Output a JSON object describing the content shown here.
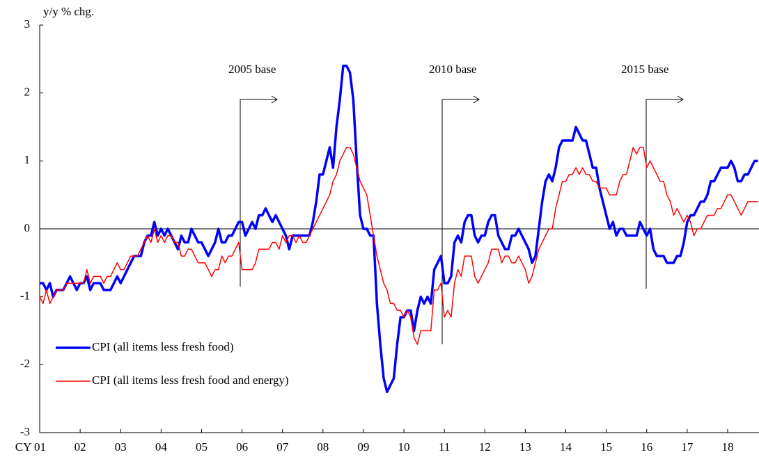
{
  "chart_data": {
    "type": "line",
    "y_label": "y/y % chg.",
    "annotations": [
      "2005 base",
      "2010 base",
      "2015 base"
    ],
    "categories": [
      "CY 01",
      null,
      null,
      null,
      null,
      null,
      null,
      null,
      null,
      null,
      null,
      null,
      "02",
      null,
      null,
      null,
      null,
      null,
      null,
      null,
      null,
      null,
      null,
      null,
      "03",
      null,
      null,
      null,
      null,
      null,
      null,
      null,
      null,
      null,
      null,
      null,
      "04",
      null,
      null,
      null,
      null,
      null,
      null,
      null,
      null,
      null,
      null,
      null,
      "05",
      null,
      null,
      null,
      null,
      null,
      null,
      null,
      null,
      null,
      null,
      null,
      "06",
      null,
      null,
      null,
      null,
      null,
      null,
      null,
      null,
      null,
      null,
      null,
      "07",
      null,
      null,
      null,
      null,
      null,
      null,
      null,
      null,
      null,
      null,
      null,
      "08",
      null,
      null,
      null,
      null,
      null,
      null,
      null,
      null,
      null,
      null,
      null,
      "09",
      null,
      null,
      null,
      null,
      null,
      null,
      null,
      null,
      null,
      null,
      null,
      "10",
      null,
      null,
      null,
      null,
      null,
      null,
      null,
      null,
      null,
      null,
      null,
      "11",
      null,
      null,
      null,
      null,
      null,
      null,
      null,
      null,
      null,
      null,
      null,
      "12",
      null,
      null,
      null,
      null,
      null,
      null,
      null,
      null,
      null,
      null,
      null,
      "13",
      null,
      null,
      null,
      null,
      null,
      null,
      null,
      null,
      null,
      null,
      null,
      "14",
      null,
      null,
      null,
      null,
      null,
      null,
      null,
      null,
      null,
      null,
      null,
      "15",
      null,
      null,
      null,
      null,
      null,
      null,
      null,
      null,
      null,
      null,
      null,
      "16",
      null,
      null,
      null,
      null,
      null,
      null,
      null,
      null,
      null,
      null,
      null,
      "17",
      null,
      null,
      null,
      null,
      null,
      null,
      null,
      null,
      null,
      null,
      null,
      "18",
      null,
      null,
      null,
      null,
      null,
      null,
      null,
      null,
      null
    ],
    "series": [
      {
        "name": "CPI (all items less fresh food)",
        "color": "#0000ff",
        "values": [
          -0.8,
          -0.8,
          -0.9,
          -0.8,
          -1.0,
          -0.9,
          -0.9,
          -0.9,
          -0.8,
          -0.7,
          -0.8,
          -0.9,
          -0.8,
          -0.8,
          -0.7,
          -0.9,
          -0.8,
          -0.8,
          -0.8,
          -0.9,
          -0.9,
          -0.9,
          -0.8,
          -0.7,
          -0.8,
          -0.7,
          -0.6,
          -0.5,
          -0.4,
          -0.4,
          -0.4,
          -0.2,
          -0.1,
          -0.1,
          0.1,
          -0.1,
          0.0,
          -0.1,
          0.0,
          -0.1,
          -0.2,
          -0.3,
          -0.1,
          -0.2,
          -0.2,
          0.0,
          -0.1,
          -0.2,
          -0.2,
          -0.3,
          -0.4,
          -0.3,
          -0.2,
          0.0,
          -0.2,
          -0.2,
          -0.1,
          -0.1,
          0.0,
          0.1,
          0.1,
          -0.1,
          0.0,
          0.1,
          0.0,
          0.2,
          0.2,
          0.3,
          0.2,
          0.1,
          0.2,
          0.1,
          0.0,
          -0.1,
          -0.3,
          -0.1,
          -0.1,
          -0.1,
          -0.1,
          -0.1,
          -0.1,
          0.1,
          0.4,
          0.8,
          0.8,
          1.0,
          1.2,
          0.9,
          1.5,
          1.9,
          2.4,
          2.4,
          2.3,
          1.9,
          1.0,
          0.2,
          0.0,
          0.0,
          -0.1,
          -0.1,
          -1.1,
          -1.7,
          -2.2,
          -2.4,
          -2.3,
          -2.2,
          -1.7,
          -1.3,
          -1.3,
          -1.2,
          -1.2,
          -1.5,
          -1.2,
          -1.0,
          -1.1,
          -1.0,
          -1.1,
          -0.6,
          -0.5,
          -0.4,
          -0.8,
          -0.8,
          -0.7,
          -0.2,
          -0.1,
          -0.2,
          0.1,
          0.2,
          0.2,
          -0.1,
          -0.2,
          -0.1,
          -0.1,
          0.1,
          0.2,
          0.2,
          -0.1,
          -0.2,
          -0.3,
          -0.3,
          -0.1,
          -0.1,
          0.0,
          -0.1,
          -0.2,
          -0.3,
          -0.5,
          -0.4,
          0.0,
          0.4,
          0.7,
          0.8,
          0.7,
          0.9,
          1.2,
          1.3,
          1.3,
          1.3,
          1.3,
          1.5,
          1.4,
          1.3,
          1.3,
          1.1,
          0.9,
          0.9,
          0.6,
          0.4,
          0.2,
          0.0,
          0.1,
          -0.1,
          0.0,
          0.0,
          -0.1,
          -0.1,
          -0.1,
          -0.1,
          0.1,
          0.0,
          -0.1,
          0.0,
          -0.3,
          -0.4,
          -0.4,
          -0.4,
          -0.5,
          -0.5,
          -0.5,
          -0.4,
          -0.4,
          -0.2,
          0.1,
          0.2,
          0.2,
          0.3,
          0.4,
          0.4,
          0.5,
          0.7,
          0.7,
          0.8,
          0.9,
          0.9,
          0.9,
          1.0,
          0.9,
          0.7,
          0.7,
          0.8,
          0.8,
          0.9,
          1.0,
          1.0
        ]
      },
      {
        "name": "CPI (all items less fresh food and energy)",
        "color": "#ff0000",
        "values": [
          -1.0,
          -1.1,
          -0.9,
          -1.1,
          -1.0,
          -0.9,
          -0.9,
          -0.9,
          -0.8,
          -0.8,
          -0.8,
          -0.8,
          -0.8,
          -0.8,
          -0.6,
          -0.8,
          -0.7,
          -0.7,
          -0.7,
          -0.8,
          -0.7,
          -0.7,
          -0.6,
          -0.5,
          -0.6,
          -0.6,
          -0.5,
          -0.4,
          -0.4,
          -0.4,
          -0.3,
          -0.2,
          -0.1,
          -0.2,
          0.0,
          -0.2,
          -0.1,
          -0.2,
          -0.1,
          -0.1,
          -0.2,
          -0.2,
          -0.4,
          -0.4,
          -0.3,
          -0.3,
          -0.4,
          -0.5,
          -0.5,
          -0.5,
          -0.6,
          -0.7,
          -0.6,
          -0.6,
          -0.4,
          -0.5,
          -0.4,
          -0.4,
          -0.3,
          -0.2,
          -0.6,
          -0.6,
          -0.6,
          -0.6,
          -0.5,
          -0.3,
          -0.3,
          -0.3,
          -0.3,
          -0.2,
          -0.2,
          -0.3,
          -0.1,
          -0.2,
          -0.1,
          -0.1,
          -0.2,
          -0.1,
          -0.2,
          -0.2,
          -0.1,
          0.0,
          0.1,
          0.2,
          0.3,
          0.4,
          0.5,
          0.7,
          0.8,
          1.0,
          1.1,
          1.2,
          1.2,
          1.1,
          0.9,
          0.7,
          0.6,
          0.5,
          0.2,
          -0.1,
          -0.4,
          -0.6,
          -0.8,
          -0.9,
          -1.1,
          -1.1,
          -1.2,
          -1.2,
          -1.3,
          -1.2,
          -1.3,
          -1.6,
          -1.7,
          -1.5,
          -1.5,
          -1.5,
          -1.5,
          -0.9,
          -0.9,
          -0.8,
          -1.3,
          -1.2,
          -1.3,
          -0.8,
          -0.6,
          -0.7,
          -0.4,
          -0.4,
          -0.4,
          -0.7,
          -0.8,
          -0.7,
          -0.6,
          -0.5,
          -0.3,
          -0.3,
          -0.3,
          -0.5,
          -0.4,
          -0.4,
          -0.5,
          -0.5,
          -0.4,
          -0.5,
          -0.6,
          -0.8,
          -0.7,
          -0.5,
          -0.3,
          -0.2,
          -0.1,
          0.0,
          0.0,
          0.3,
          0.5,
          0.7,
          0.7,
          0.8,
          0.8,
          0.9,
          0.8,
          0.9,
          0.8,
          0.8,
          0.7,
          0.7,
          0.6,
          0.6,
          0.6,
          0.5,
          0.5,
          0.5,
          0.7,
          0.8,
          0.8,
          1.0,
          1.2,
          1.1,
          1.2,
          1.2,
          0.9,
          1.0,
          0.9,
          0.8,
          0.7,
          0.7,
          0.5,
          0.4,
          0.2,
          0.3,
          0.2,
          0.1,
          0.2,
          0.1,
          -0.1,
          0.0,
          0.0,
          0.1,
          0.2,
          0.2,
          0.2,
          0.3,
          0.3,
          0.4,
          0.5,
          0.5,
          0.4,
          0.3,
          0.2,
          0.3,
          0.4,
          0.4,
          0.4,
          0.4
        ]
      }
    ],
    "ylim": [
      -3,
      3
    ],
    "yticks": [
      -3,
      -2,
      -1,
      0,
      1,
      2,
      3
    ]
  }
}
